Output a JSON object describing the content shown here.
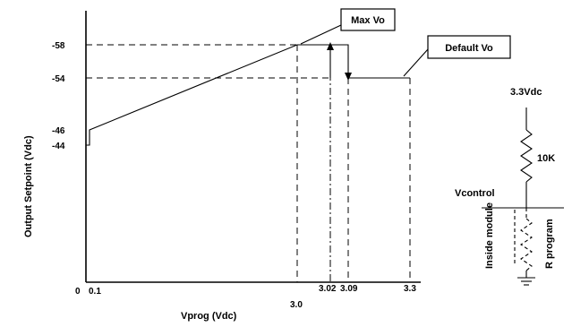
{
  "chart_data": {
    "type": "line",
    "xlabel": "Vprog (Vdc)",
    "ylabel": "Output Setpoint (Vdc)",
    "y_ticks": [
      "-58",
      "-54",
      "-46",
      "-44"
    ],
    "x_ticks": [
      "0",
      "0.1",
      "3.0",
      "3.02",
      "3.09",
      "3.3"
    ],
    "series": [
      {
        "x": [
          0,
          0,
          0.1,
          3.0,
          3.09,
          3.09,
          3.3
        ],
        "y": [
          -44,
          -46,
          -46,
          -58,
          -58,
          -54,
          -54
        ]
      }
    ],
    "callouts": {
      "max": "Max Vo",
      "default": "Default Vo"
    }
  },
  "circuit": {
    "supply": "3.3Vdc",
    "resistor": "10K",
    "node": "Vcontrol",
    "module": "Inside module",
    "r_program": "R program"
  }
}
